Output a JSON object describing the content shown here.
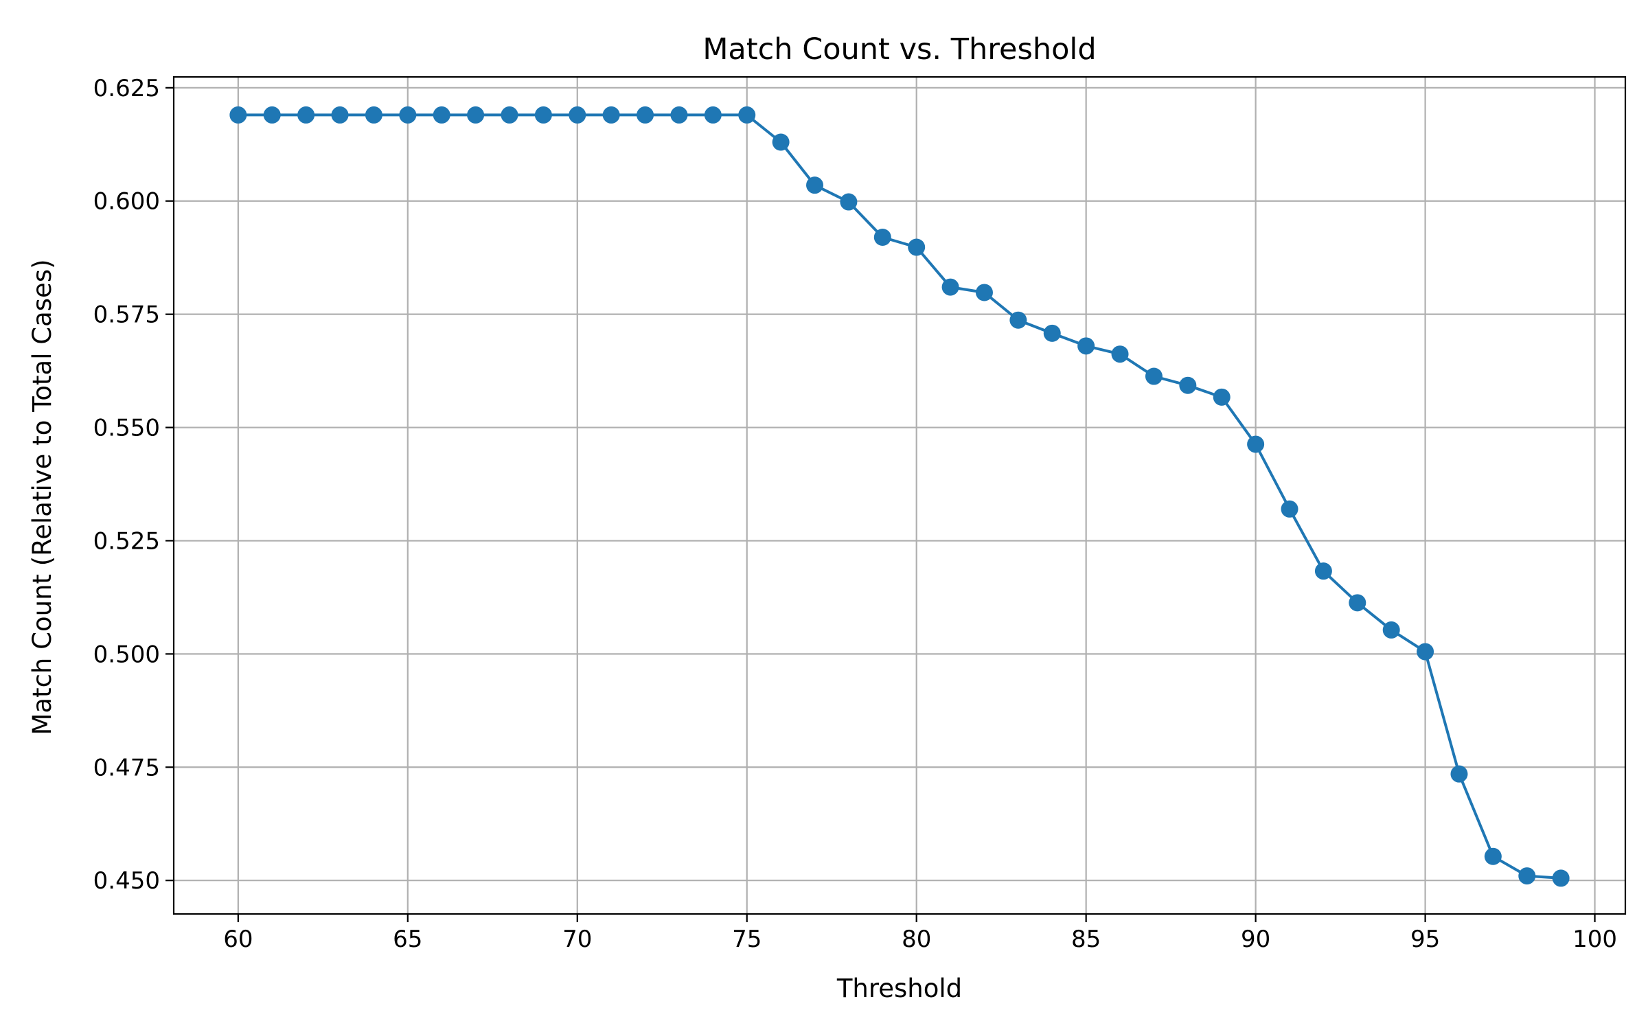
{
  "chart_data": {
    "type": "line",
    "title": "Match Count vs. Threshold",
    "xlabel": "Threshold",
    "ylabel": "Match Count (Relative to Total Cases)",
    "xlim": [
      58.1,
      100.9
    ],
    "ylim": [
      0.4426,
      0.6274
    ],
    "xticks": [
      60,
      65,
      70,
      75,
      80,
      85,
      90,
      95,
      100
    ],
    "xtick_labels": [
      "60",
      "65",
      "70",
      "75",
      "80",
      "85",
      "90",
      "95",
      "100"
    ],
    "yticks": [
      0.45,
      0.475,
      0.5,
      0.525,
      0.55,
      0.575,
      0.6,
      0.625
    ],
    "ytick_labels": [
      "0.450",
      "0.475",
      "0.500",
      "0.525",
      "0.550",
      "0.575",
      "0.600",
      "0.625"
    ],
    "grid": true,
    "color": "#1f77b4",
    "marker": "circle",
    "series": [
      {
        "x": [
          60,
          61,
          62,
          63,
          64,
          65,
          66,
          67,
          68,
          69,
          70,
          71,
          72,
          73,
          74,
          75,
          76,
          77,
          78,
          79,
          80,
          81,
          82,
          83,
          84,
          85,
          86,
          87,
          88,
          89,
          90,
          91,
          92,
          93,
          94,
          95,
          96,
          97,
          98,
          99
        ],
        "values": [
          0.619,
          0.619,
          0.619,
          0.619,
          0.619,
          0.619,
          0.619,
          0.619,
          0.619,
          0.619,
          0.619,
          0.619,
          0.619,
          0.619,
          0.619,
          0.619,
          0.613,
          0.6035,
          0.5998,
          0.592,
          0.5898,
          0.581,
          0.5798,
          0.5737,
          0.5708,
          0.568,
          0.5662,
          0.5613,
          0.5593,
          0.5567,
          0.5463,
          0.532,
          0.5183,
          0.5113,
          0.5053,
          0.5005,
          0.4735,
          0.4553,
          0.451,
          0.4505
        ]
      }
    ]
  }
}
